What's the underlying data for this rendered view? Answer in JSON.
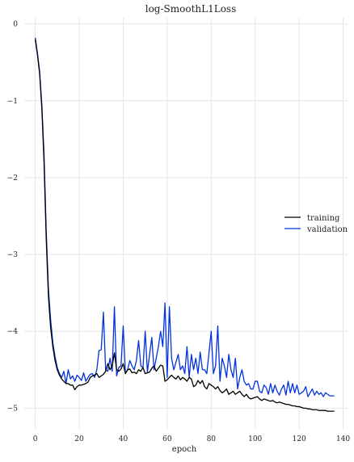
{
  "chart_data": {
    "type": "line",
    "title": "log-SmoothL1Loss",
    "xlabel": "epoch",
    "ylabel": "",
    "xlim": [
      -5,
      142
    ],
    "ylim": [
      -5.28,
      0.08
    ],
    "xticks": [
      0,
      20,
      40,
      60,
      80,
      100,
      120,
      140
    ],
    "yticks": [
      0,
      -1,
      -2,
      -3,
      -4,
      -5
    ],
    "xtick_labels": [
      "0",
      "20",
      "40",
      "60",
      "80",
      "100",
      "120",
      "140"
    ],
    "ytick_labels": [
      "0",
      "−1",
      "−2",
      "−3",
      "−4",
      "−5"
    ],
    "grid": true,
    "legend_position": "center-right",
    "series": [
      {
        "name": "training",
        "color": "#000000",
        "x": [
          0,
          1,
          2,
          3,
          4,
          5,
          6,
          7,
          8,
          9,
          10,
          11,
          12,
          13,
          14,
          15,
          16,
          17,
          18,
          19,
          20,
          21,
          22,
          23,
          24,
          25,
          26,
          27,
          28,
          29,
          30,
          31,
          32,
          33,
          34,
          35,
          36,
          37,
          38,
          39,
          40,
          41,
          42,
          43,
          44,
          45,
          46,
          47,
          48,
          49,
          50,
          51,
          52,
          53,
          54,
          55,
          56,
          57,
          58,
          59,
          60,
          61,
          62,
          63,
          64,
          65,
          66,
          67,
          68,
          69,
          70,
          71,
          72,
          73,
          74,
          75,
          76,
          77,
          78,
          79,
          80,
          81,
          82,
          83,
          84,
          85,
          86,
          87,
          88,
          89,
          90,
          91,
          92,
          93,
          94,
          95,
          96,
          97,
          98,
          99,
          100,
          101,
          102,
          103,
          104,
          105,
          106,
          107,
          108,
          109,
          110,
          111,
          112,
          113,
          114,
          115,
          116,
          117,
          118,
          119,
          120,
          121,
          122,
          123,
          124,
          125,
          126,
          127,
          128,
          129,
          130,
          131,
          132,
          133,
          134,
          135,
          136
        ],
        "values": [
          -0.2,
          -0.4,
          -0.65,
          -1.1,
          -1.8,
          -2.8,
          -3.55,
          -3.95,
          -4.2,
          -4.38,
          -4.5,
          -4.57,
          -4.62,
          -4.65,
          -4.68,
          -4.68,
          -4.7,
          -4.7,
          -4.76,
          -4.72,
          -4.7,
          -4.7,
          -4.69,
          -4.68,
          -4.66,
          -4.6,
          -4.58,
          -4.57,
          -4.55,
          -4.6,
          -4.58,
          -4.56,
          -4.52,
          -4.42,
          -4.5,
          -4.45,
          -4.28,
          -4.5,
          -4.52,
          -4.49,
          -4.42,
          -4.55,
          -4.5,
          -4.49,
          -4.54,
          -4.53,
          -4.55,
          -4.5,
          -4.52,
          -4.47,
          -4.55,
          -4.54,
          -4.53,
          -4.48,
          -4.45,
          -4.52,
          -4.48,
          -4.44,
          -4.45,
          -4.65,
          -4.63,
          -4.6,
          -4.57,
          -4.6,
          -4.62,
          -4.58,
          -4.63,
          -4.6,
          -4.62,
          -4.65,
          -4.6,
          -4.62,
          -4.72,
          -4.7,
          -4.64,
          -4.68,
          -4.64,
          -4.72,
          -4.75,
          -4.68,
          -4.7,
          -4.72,
          -4.75,
          -4.72,
          -4.77,
          -4.8,
          -4.78,
          -4.75,
          -4.82,
          -4.8,
          -4.78,
          -4.82,
          -4.8,
          -4.78,
          -4.82,
          -4.85,
          -4.82,
          -4.86,
          -4.88,
          -4.87,
          -4.86,
          -4.85,
          -4.88,
          -4.9,
          -4.88,
          -4.89,
          -4.9,
          -4.91,
          -4.9,
          -4.92,
          -4.93,
          -4.92,
          -4.93,
          -4.94,
          -4.95,
          -4.95,
          -4.96,
          -4.97,
          -4.97,
          -4.98,
          -4.98,
          -4.99,
          -5.0,
          -5.0,
          -5.01,
          -5.01,
          -5.02,
          -5.02,
          -5.02,
          -5.03,
          -5.03,
          -5.03,
          -5.03,
          -5.04,
          -5.04,
          -5.04,
          -5.04
        ]
      },
      {
        "name": "validation",
        "color": "#0033dd",
        "x": [
          0,
          1,
          2,
          3,
          4,
          5,
          6,
          7,
          8,
          9,
          10,
          11,
          12,
          13,
          14,
          15,
          16,
          17,
          18,
          19,
          20,
          21,
          22,
          23,
          24,
          25,
          26,
          27,
          28,
          29,
          30,
          31,
          32,
          33,
          34,
          35,
          36,
          37,
          38,
          39,
          40,
          41,
          42,
          43,
          44,
          45,
          46,
          47,
          48,
          49,
          50,
          51,
          52,
          53,
          54,
          55,
          56,
          57,
          58,
          59,
          60,
          61,
          62,
          63,
          64,
          65,
          66,
          67,
          68,
          69,
          70,
          71,
          72,
          73,
          74,
          75,
          76,
          77,
          78,
          79,
          80,
          81,
          82,
          83,
          84,
          85,
          86,
          87,
          88,
          89,
          90,
          91,
          92,
          93,
          94,
          95,
          96,
          97,
          98,
          99,
          100,
          101,
          102,
          103,
          104,
          105,
          106,
          107,
          108,
          109,
          110,
          111,
          112,
          113,
          114,
          115,
          116,
          117,
          118,
          119,
          120,
          121,
          122,
          123,
          124,
          125,
          126,
          127,
          128,
          129,
          130,
          131,
          132,
          133,
          134,
          135,
          136
        ],
        "values": [
          -0.18,
          -0.38,
          -0.62,
          -1.05,
          -1.7,
          -2.7,
          -3.45,
          -3.85,
          -4.15,
          -4.33,
          -4.47,
          -4.55,
          -4.6,
          -4.52,
          -4.68,
          -4.5,
          -4.62,
          -4.58,
          -4.65,
          -4.57,
          -4.6,
          -4.64,
          -4.54,
          -4.65,
          -4.6,
          -4.56,
          -4.55,
          -4.6,
          -4.5,
          -4.25,
          -4.24,
          -3.75,
          -4.5,
          -4.52,
          -4.35,
          -4.52,
          -3.68,
          -4.58,
          -4.47,
          -4.45,
          -3.93,
          -4.55,
          -4.5,
          -4.38,
          -4.45,
          -4.5,
          -4.38,
          -4.12,
          -4.45,
          -4.47,
          -4.0,
          -4.53,
          -4.3,
          -4.08,
          -4.5,
          -4.35,
          -4.2,
          -4.0,
          -4.2,
          -3.63,
          -4.6,
          -3.68,
          -4.35,
          -4.5,
          -4.4,
          -4.3,
          -4.5,
          -4.45,
          -4.55,
          -4.2,
          -4.6,
          -4.3,
          -4.5,
          -4.35,
          -4.55,
          -4.27,
          -4.5,
          -4.5,
          -4.55,
          -4.28,
          -4.0,
          -4.55,
          -4.45,
          -3.93,
          -4.65,
          -4.35,
          -4.45,
          -4.6,
          -4.3,
          -4.5,
          -4.6,
          -4.35,
          -4.75,
          -4.6,
          -4.5,
          -4.65,
          -4.7,
          -4.68,
          -4.75,
          -4.75,
          -4.65,
          -4.65,
          -4.78,
          -4.8,
          -4.7,
          -4.73,
          -4.82,
          -4.68,
          -4.8,
          -4.7,
          -4.78,
          -4.83,
          -4.75,
          -4.7,
          -4.83,
          -4.65,
          -4.8,
          -4.68,
          -4.8,
          -4.7,
          -4.82,
          -4.8,
          -4.78,
          -4.72,
          -4.85,
          -4.8,
          -4.75,
          -4.83,
          -4.78,
          -4.82,
          -4.8,
          -4.85,
          -4.8,
          -4.82,
          -4.84,
          -4.84,
          -4.84
        ]
      }
    ]
  }
}
